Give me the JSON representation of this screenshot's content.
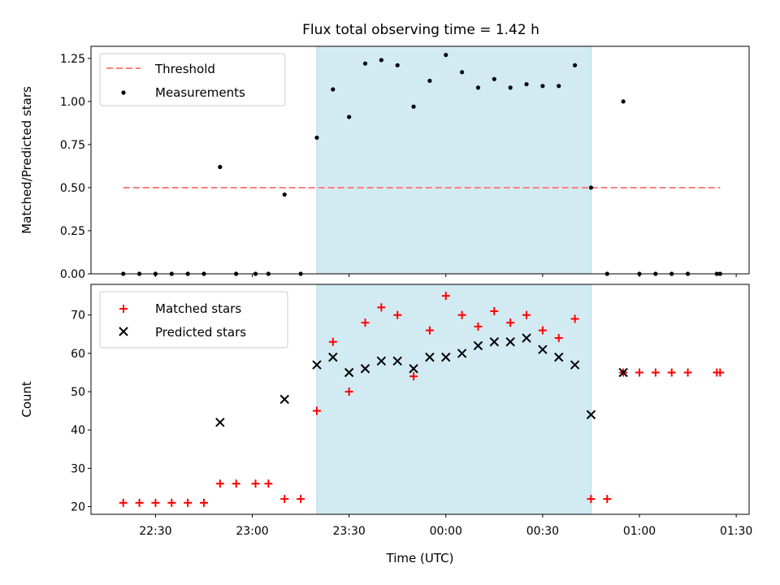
{
  "figure": {
    "title": "Flux total observing time = 1.42 h"
  },
  "colors": {
    "threshold": "#ff7f7f",
    "shade": "#add8e6",
    "matched": "#ff0000",
    "predicted": "#000000",
    "measurement": "#000000"
  },
  "chart_data": [
    {
      "type": "scatter",
      "panel": "top",
      "ylabel": "Matched/Predicted stars",
      "ylim": [
        0,
        1.32
      ],
      "yticks": [
        {
          "v": 0,
          "label": "0.00"
        },
        {
          "v": 0.25,
          "label": "0.25"
        },
        {
          "v": 0.5,
          "label": "0.50"
        },
        {
          "v": 0.75,
          "label": "0.75"
        },
        {
          "v": 1.0,
          "label": "1.00"
        },
        {
          "v": 1.25,
          "label": "1.25"
        }
      ],
      "shaded_span": [
        "23:20",
        "00:45"
      ],
      "threshold": {
        "name": "Threshold",
        "y": 0.5,
        "x": [
          "22:20",
          "01:25"
        ]
      },
      "legend": {
        "placement": "top-left",
        "entries": [
          "Threshold",
          "Measurements"
        ]
      },
      "series": [
        {
          "name": "Measurements",
          "points": [
            {
              "x": "22:20",
              "y": 0
            },
            {
              "x": "22:25",
              "y": 0
            },
            {
              "x": "22:30",
              "y": 0
            },
            {
              "x": "22:35",
              "y": 0
            },
            {
              "x": "22:40",
              "y": 0
            },
            {
              "x": "22:45",
              "y": 0
            },
            {
              "x": "22:50",
              "y": 0.62
            },
            {
              "x": "22:55",
              "y": 0
            },
            {
              "x": "23:01",
              "y": 0
            },
            {
              "x": "23:05",
              "y": 0
            },
            {
              "x": "23:10",
              "y": 0.46
            },
            {
              "x": "23:15",
              "y": 0
            },
            {
              "x": "23:20",
              "y": 0.79
            },
            {
              "x": "23:25",
              "y": 1.07
            },
            {
              "x": "23:30",
              "y": 0.91
            },
            {
              "x": "23:35",
              "y": 1.22
            },
            {
              "x": "23:40",
              "y": 1.24
            },
            {
              "x": "23:45",
              "y": 1.21
            },
            {
              "x": "23:50",
              "y": 0.97
            },
            {
              "x": "23:55",
              "y": 1.12
            },
            {
              "x": "00:00",
              "y": 1.27
            },
            {
              "x": "00:05",
              "y": 1.17
            },
            {
              "x": "00:10",
              "y": 1.08
            },
            {
              "x": "00:15",
              "y": 1.13
            },
            {
              "x": "00:20",
              "y": 1.08
            },
            {
              "x": "00:25",
              "y": 1.1
            },
            {
              "x": "00:30",
              "y": 1.09
            },
            {
              "x": "00:35",
              "y": 1.09
            },
            {
              "x": "00:40",
              "y": 1.21
            },
            {
              "x": "00:45",
              "y": 0.5
            },
            {
              "x": "00:50",
              "y": 0
            },
            {
              "x": "01:00",
              "y": 0
            },
            {
              "x": "01:05",
              "y": 0
            },
            {
              "x": "01:10",
              "y": 0
            },
            {
              "x": "01:15",
              "y": 0
            },
            {
              "x": "01:24",
              "y": 0
            },
            {
              "x": "01:25",
              "y": 0
            },
            {
              "x": "00:55",
              "y": 1.0
            }
          ]
        }
      ]
    },
    {
      "type": "scatter",
      "panel": "bottom",
      "xlabel": "Time (UTC)",
      "ylabel": "Count",
      "ylim": [
        18,
        78
      ],
      "yticks": [
        {
          "v": 20,
          "label": "20"
        },
        {
          "v": 30,
          "label": "30"
        },
        {
          "v": 40,
          "label": "40"
        },
        {
          "v": 50,
          "label": "50"
        },
        {
          "v": 60,
          "label": "60"
        },
        {
          "v": 70,
          "label": "70"
        }
      ],
      "xlim": [
        "22:10",
        "01:34"
      ],
      "xticks": [
        "22:30",
        "23:00",
        "23:30",
        "00:00",
        "00:30",
        "01:00",
        "01:30"
      ],
      "shaded_span": [
        "23:20",
        "00:45"
      ],
      "legend": {
        "placement": "top-left",
        "entries": [
          "Matched stars",
          "Predicted stars"
        ]
      },
      "series": [
        {
          "name": "Matched stars",
          "points": [
            {
              "x": "22:20",
              "y": 21
            },
            {
              "x": "22:25",
              "y": 21
            },
            {
              "x": "22:30",
              "y": 21
            },
            {
              "x": "22:35",
              "y": 21
            },
            {
              "x": "22:40",
              "y": 21
            },
            {
              "x": "22:45",
              "y": 21
            },
            {
              "x": "22:50",
              "y": 26
            },
            {
              "x": "22:55",
              "y": 26
            },
            {
              "x": "23:01",
              "y": 26
            },
            {
              "x": "23:05",
              "y": 26
            },
            {
              "x": "23:10",
              "y": 22
            },
            {
              "x": "23:15",
              "y": 22
            },
            {
              "x": "23:20",
              "y": 45
            },
            {
              "x": "23:25",
              "y": 63
            },
            {
              "x": "23:30",
              "y": 50
            },
            {
              "x": "23:35",
              "y": 68
            },
            {
              "x": "23:40",
              "y": 72
            },
            {
              "x": "23:45",
              "y": 70
            },
            {
              "x": "23:50",
              "y": 54
            },
            {
              "x": "23:55",
              "y": 66
            },
            {
              "x": "00:00",
              "y": 75
            },
            {
              "x": "00:05",
              "y": 70
            },
            {
              "x": "00:10",
              "y": 67
            },
            {
              "x": "00:15",
              "y": 71
            },
            {
              "x": "00:20",
              "y": 68
            },
            {
              "x": "00:25",
              "y": 70
            },
            {
              "x": "00:30",
              "y": 66
            },
            {
              "x": "00:35",
              "y": 64
            },
            {
              "x": "00:40",
              "y": 69
            },
            {
              "x": "00:45",
              "y": 22
            },
            {
              "x": "00:50",
              "y": 22
            },
            {
              "x": "00:55",
              "y": 55
            },
            {
              "x": "01:00",
              "y": 55
            },
            {
              "x": "01:05",
              "y": 55
            },
            {
              "x": "01:10",
              "y": 55
            },
            {
              "x": "01:15",
              "y": 55
            },
            {
              "x": "01:24",
              "y": 55
            },
            {
              "x": "01:25",
              "y": 55
            }
          ]
        },
        {
          "name": "Predicted stars",
          "points": [
            {
              "x": "22:50",
              "y": 42
            },
            {
              "x": "23:10",
              "y": 48
            },
            {
              "x": "23:20",
              "y": 57
            },
            {
              "x": "23:25",
              "y": 59
            },
            {
              "x": "23:30",
              "y": 55
            },
            {
              "x": "23:35",
              "y": 56
            },
            {
              "x": "23:40",
              "y": 58
            },
            {
              "x": "23:45",
              "y": 58
            },
            {
              "x": "23:50",
              "y": 56
            },
            {
              "x": "23:55",
              "y": 59
            },
            {
              "x": "00:00",
              "y": 59
            },
            {
              "x": "00:05",
              "y": 60
            },
            {
              "x": "00:10",
              "y": 62
            },
            {
              "x": "00:15",
              "y": 63
            },
            {
              "x": "00:20",
              "y": 63
            },
            {
              "x": "00:25",
              "y": 64
            },
            {
              "x": "00:30",
              "y": 61
            },
            {
              "x": "00:35",
              "y": 59
            },
            {
              "x": "00:40",
              "y": 57
            },
            {
              "x": "00:45",
              "y": 44
            },
            {
              "x": "00:55",
              "y": 55
            }
          ]
        }
      ]
    }
  ]
}
